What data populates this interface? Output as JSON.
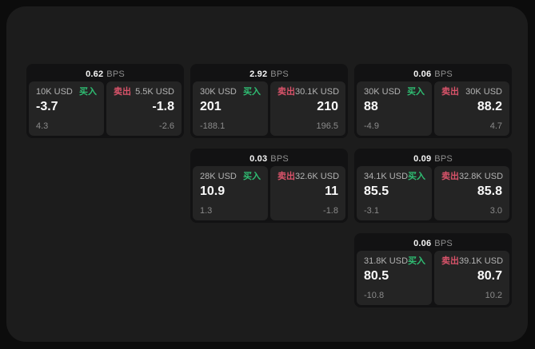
{
  "page": {
    "bg_outer": "#0c0c0c",
    "bg_surface": "#1c1c1c"
  },
  "labels": {
    "bps_suffix": "BPS",
    "buy": "买入",
    "sell": "卖出"
  },
  "colors": {
    "buy_green": "#2fbe73",
    "sell_red": "#d9536a"
  },
  "cards": [
    {
      "bps": "0.62",
      "buy": {
        "notional": "10K USD",
        "price": "-3.7",
        "delta": "4.3"
      },
      "sell": {
        "notional": "5.5K USD",
        "price": "-1.8",
        "delta": "-2.6"
      }
    },
    {
      "bps": "2.92",
      "buy": {
        "notional": "30K USD",
        "price": "201",
        "delta": "-188.1"
      },
      "sell": {
        "notional": "30.1K USD",
        "price": "210",
        "delta": "196.5"
      }
    },
    {
      "bps": "0.06",
      "buy": {
        "notional": "30K USD",
        "price": "88",
        "delta": "-4.9"
      },
      "sell": {
        "notional": "30K USD",
        "price": "88.2",
        "delta": "4.7"
      }
    },
    {
      "bps": "0.03",
      "buy": {
        "notional": "28K USD",
        "price": "10.9",
        "delta": "1.3"
      },
      "sell": {
        "notional": "32.6K USD",
        "price": "11",
        "delta": "-1.8"
      }
    },
    {
      "bps": "0.09",
      "buy": {
        "notional": "34.1K USD",
        "price": "85.5",
        "delta": "-3.1"
      },
      "sell": {
        "notional": "32.8K USD",
        "price": "85.8",
        "delta": "3.0"
      }
    },
    {
      "bps": "0.06",
      "buy": {
        "notional": "31.8K USD",
        "price": "80.5",
        "delta": "-10.8"
      },
      "sell": {
        "notional": "39.1K USD",
        "price": "80.7",
        "delta": "10.2"
      }
    }
  ]
}
